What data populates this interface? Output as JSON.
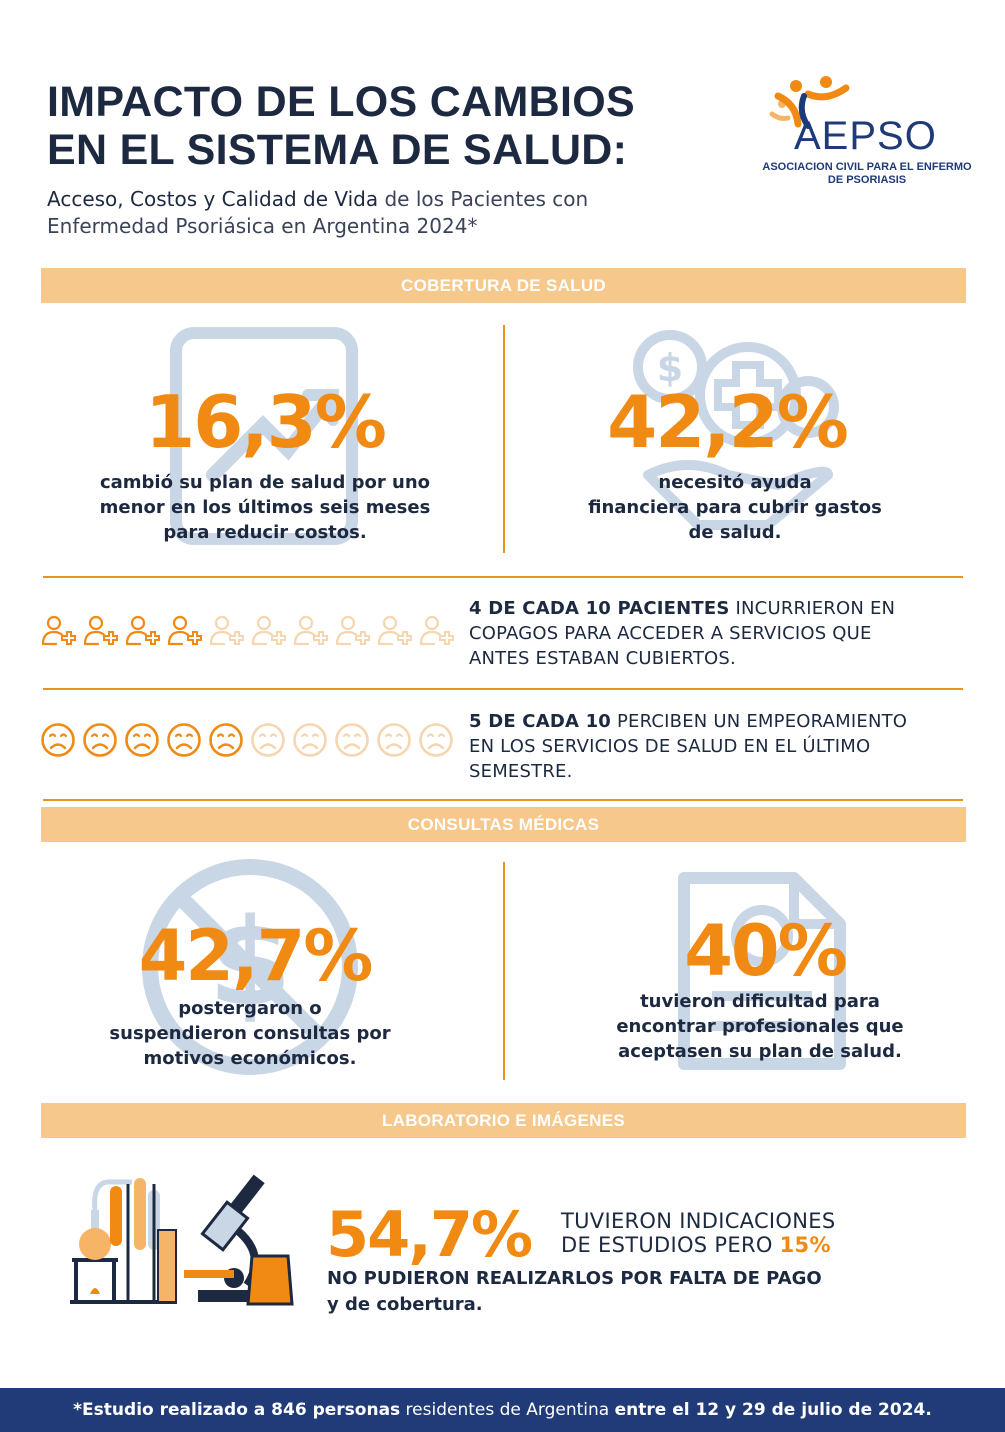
{
  "header": {
    "title_line1": "IMPACTO DE LOS CAMBIOS",
    "title_line2": "EN EL SISTEMA DE SALUD:",
    "subtitle_bold": "Acceso, Costos y Calidad de Vida",
    "subtitle_rest1": " de los Pacientes con",
    "subtitle_line2": "Enfermedad Psoriásica en Argentina 2024*"
  },
  "logo": {
    "name": "AEPSO",
    "sub_line1": "ASOCIACION CIVIL PARA EL ENFERMO",
    "sub_line2": "DE PSORIASIS"
  },
  "sections": {
    "cobertura": "COBERTURA DE SALUD",
    "consultas": "CONSULTAS MÉDICAS",
    "laboratorio": "LABORATORIO E IMÁGENES"
  },
  "stats": {
    "s1_pct": "16,3%",
    "s1_l1": "cambió su plan de salud por uno",
    "s1_l2": "menor en los últimos seis meses",
    "s1_l3": "para reducir costos.",
    "s2_pct": "42,2%",
    "s2_l1": "necesitó ayuda",
    "s2_l2": "financiera para cubrir gastos",
    "s2_l3": "de salud.",
    "s3_pct": "42,7%",
    "s3_l1": "postergaron o",
    "s3_l2": "suspendieron consultas por",
    "s3_l3": "motivos económicos.",
    "s4_pct": "40%",
    "s4_l1": "tuvieron dificultad para",
    "s4_l2": "encontrar profesionales que",
    "s4_l3": "aceptasen su plan de salud."
  },
  "rows": {
    "r1_bold": "4 DE CADA 10 PACIENTES",
    "r1_l1": " INCURRIERON EN",
    "r1_l2": "COPAGOS PARA ACCEDER A SERVICIOS QUE",
    "r1_l3": "ANTES ESTABAN CUBIERTOS.",
    "r1_filled": 4,
    "r1_total": 10,
    "r2_bold": "5 DE CADA 10",
    "r2_l1": " PERCIBEN UN EMPEORAMIENTO",
    "r2_l2": "EN LOS SERVICIOS DE SALUD EN EL ÚLTIMO",
    "r2_l3": "SEMESTRE.",
    "r2_filled": 5,
    "r2_total": 10
  },
  "lab": {
    "pct": "54,7%",
    "t1_l1": "TUVIERON INDICACIONES",
    "t1_l2": "DE ESTUDIOS PERO ",
    "t1_hl": "15%",
    "t2_l1": "NO PUDIERON REALIZARLOS POR FALTA DE PAGO",
    "t2_l2": "y de cobertura."
  },
  "footer": {
    "bold1": "*Estudio realizado a 846 personas",
    "normal": " residentes de Argentina ",
    "bold2": "entre el 12 y 29 de julio de 2024."
  },
  "colors": {
    "accent": "#f08a12",
    "band": "#f6c88b",
    "navy": "#213a78",
    "faded": "#f5d6b0",
    "icon_bg": "#c9d6e6"
  }
}
